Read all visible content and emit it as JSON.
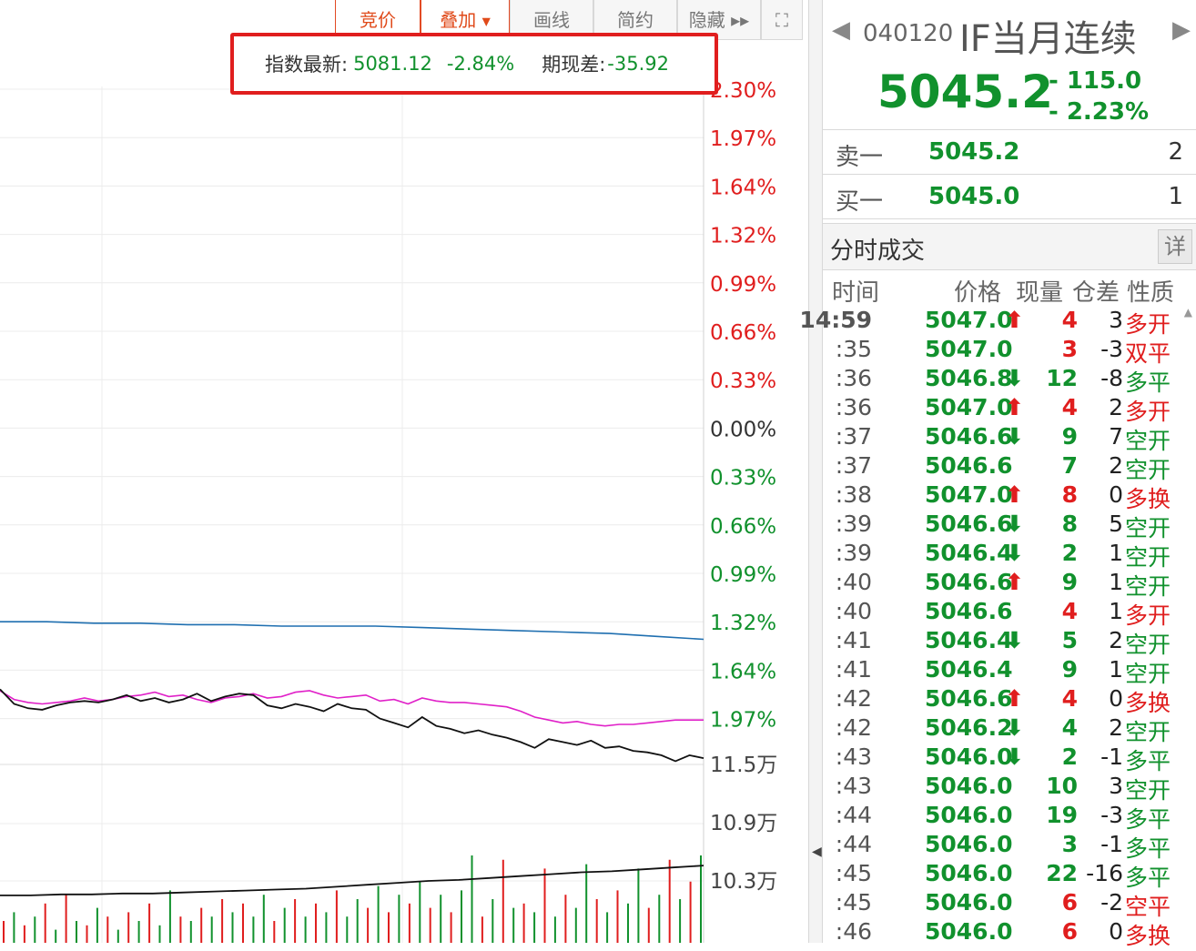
{
  "toolbar": {
    "buttons": [
      {
        "label": "竞价",
        "active": true
      },
      {
        "label": "叠加",
        "active": true,
        "caret": "▼"
      },
      {
        "label": "画线",
        "active": false
      },
      {
        "label": "简约",
        "active": false
      },
      {
        "label": "隐藏 ▸▸",
        "active": false
      },
      {
        "label": "⛶",
        "active": false
      }
    ]
  },
  "index_info": {
    "latest_label": "指数最新:",
    "latest_value": "5081.12",
    "latest_change": "-2.84%",
    "basis_label": "期现差:",
    "basis_value": "-35.92"
  },
  "chart_data": {
    "type": "line",
    "right_axis_top": [
      {
        "label": "2.30%",
        "color": "#e01e1e"
      },
      {
        "label": "1.97%",
        "color": "#e01e1e"
      },
      {
        "label": "1.64%",
        "color": "#e01e1e"
      },
      {
        "label": "1.32%",
        "color": "#e01e1e"
      },
      {
        "label": "0.99%",
        "color": "#e01e1e"
      },
      {
        "label": "0.66%",
        "color": "#e01e1e"
      },
      {
        "label": "0.33%",
        "color": "#e01e1e"
      },
      {
        "label": "0.00%",
        "color": "#333333"
      },
      {
        "label": "0.33%",
        "color": "#11912d"
      },
      {
        "label": "0.66%",
        "color": "#11912d"
      },
      {
        "label": "0.99%",
        "color": "#11912d"
      },
      {
        "label": "1.32%",
        "color": "#11912d"
      },
      {
        "label": "1.64%",
        "color": "#11912d"
      },
      {
        "label": "1.97%",
        "color": "#11912d"
      }
    ],
    "right_axis_volume": [
      "11.5万",
      "10.9万",
      "10.3万"
    ],
    "series": [
      {
        "key": "open-interest",
        "color": "#1f6fb0",
        "values": [
          -1.32,
          -1.32,
          -1.33,
          -1.33,
          -1.34,
          -1.34,
          -1.35,
          -1.35,
          -1.35,
          -1.36,
          -1.37,
          -1.38,
          -1.39,
          -1.4,
          -1.42,
          -1.44
        ]
      },
      {
        "key": "index",
        "color": "#e020c8",
        "values": [
          -1.79,
          -1.85,
          -1.87,
          -1.88,
          -1.87,
          -1.86,
          -1.84,
          -1.86,
          -1.85,
          -1.83,
          -1.82,
          -1.8,
          -1.83,
          -1.82,
          -1.85,
          -1.87,
          -1.84,
          -1.83,
          -1.81,
          -1.84,
          -1.83,
          -1.8,
          -1.79,
          -1.82,
          -1.84,
          -1.83,
          -1.82,
          -1.86,
          -1.85,
          -1.88,
          -1.84,
          -1.86,
          -1.87,
          -1.87,
          -1.88,
          -1.89,
          -1.9,
          -1.93,
          -1.97,
          -1.99,
          -2.01,
          -2.0,
          -2.02,
          -2.03,
          -2.02,
          -2.02,
          -2.01,
          -2.0,
          -1.99,
          -1.99,
          -1.99
        ]
      },
      {
        "key": "futures",
        "color": "#111111",
        "values": [
          -1.78,
          -1.88,
          -1.91,
          -1.92,
          -1.89,
          -1.87,
          -1.86,
          -1.87,
          -1.85,
          -1.82,
          -1.86,
          -1.84,
          -1.87,
          -1.85,
          -1.81,
          -1.86,
          -1.83,
          -1.81,
          -1.82,
          -1.89,
          -1.91,
          -1.88,
          -1.9,
          -1.93,
          -1.88,
          -1.91,
          -1.92,
          -1.98,
          -2.01,
          -2.04,
          -1.97,
          -2.03,
          -2.05,
          -2.08,
          -2.06,
          -2.09,
          -2.11,
          -2.14,
          -2.18,
          -2.12,
          -2.14,
          -2.16,
          -2.13,
          -2.18,
          -2.17,
          -2.2,
          -2.21,
          -2.23,
          -2.27,
          -2.23,
          -2.25
        ]
      },
      {
        "key": "volume-cumulative",
        "color": "#111111",
        "values": [
          10.15,
          10.15,
          10.16,
          10.16,
          10.17,
          10.17,
          10.18,
          10.19,
          10.2,
          10.21,
          10.22,
          10.24,
          10.26,
          10.28,
          10.3,
          10.31,
          10.33,
          10.35,
          10.37,
          10.39,
          10.4,
          10.42,
          10.44,
          10.46
        ]
      }
    ],
    "volume_bars": [
      {
        "v": 0.25,
        "c": "r"
      },
      {
        "v": 0.35,
        "c": "g"
      },
      {
        "v": 0.2,
        "c": "r"
      },
      {
        "v": 0.3,
        "c": "g"
      },
      {
        "v": 0.45,
        "c": "r"
      },
      {
        "v": 0.15,
        "c": "g"
      },
      {
        "v": 0.55,
        "c": "r"
      },
      {
        "v": 0.25,
        "c": "g"
      },
      {
        "v": 0.2,
        "c": "r"
      },
      {
        "v": 0.4,
        "c": "g"
      },
      {
        "v": 0.3,
        "c": "r"
      },
      {
        "v": 0.15,
        "c": "g"
      },
      {
        "v": 0.35,
        "c": "r"
      },
      {
        "v": 0.25,
        "c": "g"
      },
      {
        "v": 0.45,
        "c": "r"
      },
      {
        "v": 0.2,
        "c": "g"
      },
      {
        "v": 0.6,
        "c": "g"
      },
      {
        "v": 0.3,
        "c": "r"
      },
      {
        "v": 0.25,
        "c": "g"
      },
      {
        "v": 0.4,
        "c": "r"
      },
      {
        "v": 0.3,
        "c": "g"
      },
      {
        "v": 0.5,
        "c": "r"
      },
      {
        "v": 0.35,
        "c": "g"
      },
      {
        "v": 0.45,
        "c": "r"
      },
      {
        "v": 0.3,
        "c": "g"
      },
      {
        "v": 0.55,
        "c": "g"
      },
      {
        "v": 0.25,
        "c": "r"
      },
      {
        "v": 0.4,
        "c": "g"
      },
      {
        "v": 0.5,
        "c": "r"
      },
      {
        "v": 0.3,
        "c": "g"
      },
      {
        "v": 0.45,
        "c": "r"
      },
      {
        "v": 0.35,
        "c": "g"
      },
      {
        "v": 0.6,
        "c": "r"
      },
      {
        "v": 0.3,
        "c": "g"
      },
      {
        "v": 0.5,
        "c": "g"
      },
      {
        "v": 0.4,
        "c": "r"
      },
      {
        "v": 0.65,
        "c": "g"
      },
      {
        "v": 0.35,
        "c": "r"
      },
      {
        "v": 0.55,
        "c": "g"
      },
      {
        "v": 0.45,
        "c": "r"
      },
      {
        "v": 0.7,
        "c": "g"
      },
      {
        "v": 0.4,
        "c": "r"
      },
      {
        "v": 0.55,
        "c": "g"
      },
      {
        "v": 0.35,
        "c": "r"
      },
      {
        "v": 0.6,
        "c": "g"
      },
      {
        "v": 1.0,
        "c": "g"
      },
      {
        "v": 0.3,
        "c": "r"
      },
      {
        "v": 0.5,
        "c": "g"
      },
      {
        "v": 0.95,
        "c": "r"
      },
      {
        "v": 0.4,
        "c": "g"
      },
      {
        "v": 0.45,
        "c": "r"
      },
      {
        "v": 0.35,
        "c": "g"
      },
      {
        "v": 0.85,
        "c": "r"
      },
      {
        "v": 0.3,
        "c": "g"
      },
      {
        "v": 0.55,
        "c": "r"
      },
      {
        "v": 0.4,
        "c": "g"
      },
      {
        "v": 0.9,
        "c": "g"
      },
      {
        "v": 0.5,
        "c": "r"
      },
      {
        "v": 0.35,
        "c": "g"
      },
      {
        "v": 0.6,
        "c": "r"
      },
      {
        "v": 0.45,
        "c": "g"
      },
      {
        "v": 0.85,
        "c": "g"
      },
      {
        "v": 0.4,
        "c": "r"
      },
      {
        "v": 0.55,
        "c": "g"
      },
      {
        "v": 0.95,
        "c": "r"
      },
      {
        "v": 0.5,
        "c": "g"
      },
      {
        "v": 0.7,
        "c": "r"
      },
      {
        "v": 1.0,
        "c": "g"
      }
    ]
  },
  "quote": {
    "code": "040120",
    "name": "IF当月连续",
    "price": "5045.2",
    "change": "- 115.0",
    "change_pct": "- 2.23%",
    "ask_label": "卖一",
    "ask_price": "5045.2",
    "ask_qty": "2",
    "bid_label": "买一",
    "bid_price": "5045.0",
    "bid_qty": "1"
  },
  "ticks_section": {
    "title": "分时成交",
    "detail_label": "详",
    "headers": {
      "time": "时间",
      "price": "价格",
      "volume": "现量",
      "oi": "仓差",
      "nature": "性质"
    },
    "rows": [
      {
        "time": "14:59",
        "price": "5047.0",
        "dir": "up",
        "pc": "g",
        "vol": "4",
        "vc": "r",
        "oi": "3",
        "nat": "多开",
        "nc": "r"
      },
      {
        "time": ":35",
        "price": "5047.0",
        "dir": "",
        "pc": "g",
        "vol": "3",
        "vc": "r",
        "oi": "-3",
        "nat": "双平",
        "nc": "r"
      },
      {
        "time": ":36",
        "price": "5046.8",
        "dir": "down",
        "pc": "g",
        "vol": "12",
        "vc": "g",
        "oi": "-8",
        "nat": "多平",
        "nc": "g"
      },
      {
        "time": ":36",
        "price": "5047.0",
        "dir": "up",
        "pc": "g",
        "vol": "4",
        "vc": "r",
        "oi": "2",
        "nat": "多开",
        "nc": "r"
      },
      {
        "time": ":37",
        "price": "5046.6",
        "dir": "down",
        "pc": "g",
        "vol": "9",
        "vc": "g",
        "oi": "7",
        "nat": "空开",
        "nc": "g"
      },
      {
        "time": ":37",
        "price": "5046.6",
        "dir": "",
        "pc": "g",
        "vol": "7",
        "vc": "g",
        "oi": "2",
        "nat": "空开",
        "nc": "g"
      },
      {
        "time": ":38",
        "price": "5047.0",
        "dir": "up",
        "pc": "g",
        "vol": "8",
        "vc": "r",
        "oi": "0",
        "nat": "多换",
        "nc": "r"
      },
      {
        "time": ":39",
        "price": "5046.6",
        "dir": "down",
        "pc": "g",
        "vol": "8",
        "vc": "g",
        "oi": "5",
        "nat": "空开",
        "nc": "g"
      },
      {
        "time": ":39",
        "price": "5046.4",
        "dir": "down",
        "pc": "g",
        "vol": "2",
        "vc": "g",
        "oi": "1",
        "nat": "空开",
        "nc": "g"
      },
      {
        "time": ":40",
        "price": "5046.6",
        "dir": "up",
        "pc": "g",
        "vol": "9",
        "vc": "g",
        "oi": "1",
        "nat": "空开",
        "nc": "g"
      },
      {
        "time": ":40",
        "price": "5046.6",
        "dir": "",
        "pc": "g",
        "vol": "4",
        "vc": "r",
        "oi": "1",
        "nat": "多开",
        "nc": "r"
      },
      {
        "time": ":41",
        "price": "5046.4",
        "dir": "down",
        "pc": "g",
        "vol": "5",
        "vc": "g",
        "oi": "2",
        "nat": "空开",
        "nc": "g"
      },
      {
        "time": ":41",
        "price": "5046.4",
        "dir": "",
        "pc": "g",
        "vol": "9",
        "vc": "g",
        "oi": "1",
        "nat": "空开",
        "nc": "g"
      },
      {
        "time": ":42",
        "price": "5046.6",
        "dir": "up",
        "pc": "g",
        "vol": "4",
        "vc": "r",
        "oi": "0",
        "nat": "多换",
        "nc": "r"
      },
      {
        "time": ":42",
        "price": "5046.2",
        "dir": "down",
        "pc": "g",
        "vol": "4",
        "vc": "g",
        "oi": "2",
        "nat": "空开",
        "nc": "g"
      },
      {
        "time": ":43",
        "price": "5046.0",
        "dir": "down",
        "pc": "g",
        "vol": "2",
        "vc": "g",
        "oi": "-1",
        "nat": "多平",
        "nc": "g"
      },
      {
        "time": ":43",
        "price": "5046.0",
        "dir": "",
        "pc": "g",
        "vol": "10",
        "vc": "g",
        "oi": "3",
        "nat": "空开",
        "nc": "g"
      },
      {
        "time": ":44",
        "price": "5046.0",
        "dir": "",
        "pc": "g",
        "vol": "19",
        "vc": "g",
        "oi": "-3",
        "nat": "多平",
        "nc": "g"
      },
      {
        "time": ":44",
        "price": "5046.0",
        "dir": "",
        "pc": "g",
        "vol": "3",
        "vc": "g",
        "oi": "-1",
        "nat": "多平",
        "nc": "g"
      },
      {
        "time": ":45",
        "price": "5046.0",
        "dir": "",
        "pc": "g",
        "vol": "22",
        "vc": "g",
        "oi": "-16",
        "nat": "多平",
        "nc": "g"
      },
      {
        "time": ":45",
        "price": "5046.0",
        "dir": "",
        "pc": "g",
        "vol": "6",
        "vc": "r",
        "oi": "-2",
        "nat": "空平",
        "nc": "r"
      },
      {
        "time": ":46",
        "price": "5046.0",
        "dir": "",
        "pc": "g",
        "vol": "6",
        "vc": "r",
        "oi": "0",
        "nat": "多换",
        "nc": "r"
      }
    ]
  },
  "colors": {
    "up": "#e01e1e",
    "down": "#11912d",
    "accent": "#e24b24"
  }
}
